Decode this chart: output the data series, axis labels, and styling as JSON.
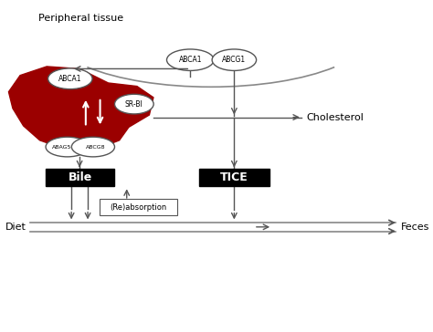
{
  "bg_color": "#ffffff",
  "liver_color": "#9b0000",
  "gray_line": "#888888",
  "dark_line": "#555555",
  "peripheral_tissue_label": "Peripheral tissue",
  "ABCA1_top": "ABCA1",
  "ABCG1_top": "ABCG1",
  "ABCA1_liver": "ABCA1",
  "SR_BI": "SR-BI",
  "ABCG5": "ABAG5",
  "ABCG8": "ABCG8",
  "Bile": "Bile",
  "TICE": "TICE",
  "Cholesterol": "Cholesterol",
  "Reabsorption": "(Re)absorption",
  "Diet": "Diet",
  "Feces": "Feces"
}
